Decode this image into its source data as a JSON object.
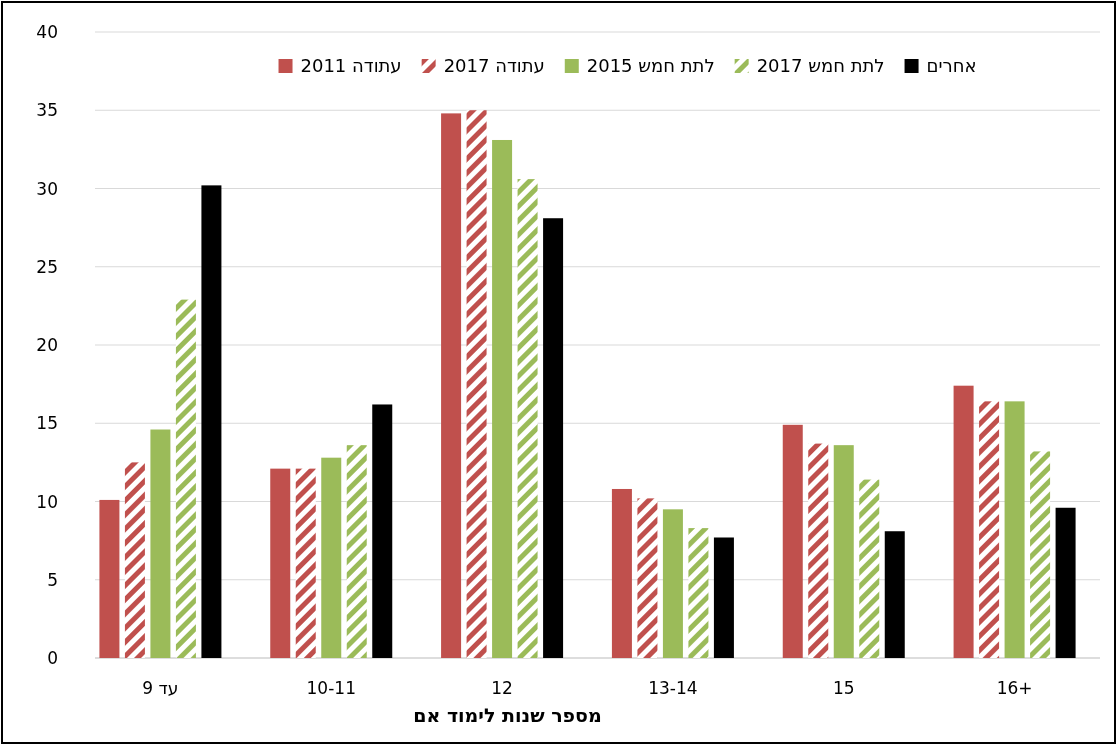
{
  "chart_data": {
    "type": "bar",
    "xlabel": "מספר שנות לימוד אם",
    "categories": [
      "עד 9",
      "10-11",
      "12",
      "13-14",
      "15",
      "16+"
    ],
    "series": [
      {
        "name": "עתודה 2011",
        "color": "#c0504d",
        "values": [
          10.1,
          12.1,
          34.8,
          10.8,
          14.9,
          17.4
        ]
      },
      {
        "name": "עתודה 2017",
        "color": "#c0504d",
        "values": [
          12.5,
          12.1,
          35.0,
          10.2,
          13.7,
          16.4
        ]
      },
      {
        "name": "לתת חמש 2015",
        "color": "#9bbb59",
        "values": [
          14.6,
          12.8,
          33.1,
          9.5,
          13.6,
          16.4
        ]
      },
      {
        "name": "לתת חמש 2017",
        "color": "#9bbb59",
        "values": [
          22.9,
          13.6,
          30.6,
          8.3,
          11.4,
          13.2
        ]
      },
      {
        "name": "אחרים",
        "color": "#000000",
        "values": [
          30.2,
          16.2,
          28.1,
          7.7,
          8.1,
          9.6
        ]
      }
    ],
    "ylim": [
      0,
      40
    ],
    "yticks": [
      0,
      5,
      10,
      15,
      20,
      25,
      30,
      35,
      40
    ],
    "grid": "y",
    "legend": "top"
  }
}
